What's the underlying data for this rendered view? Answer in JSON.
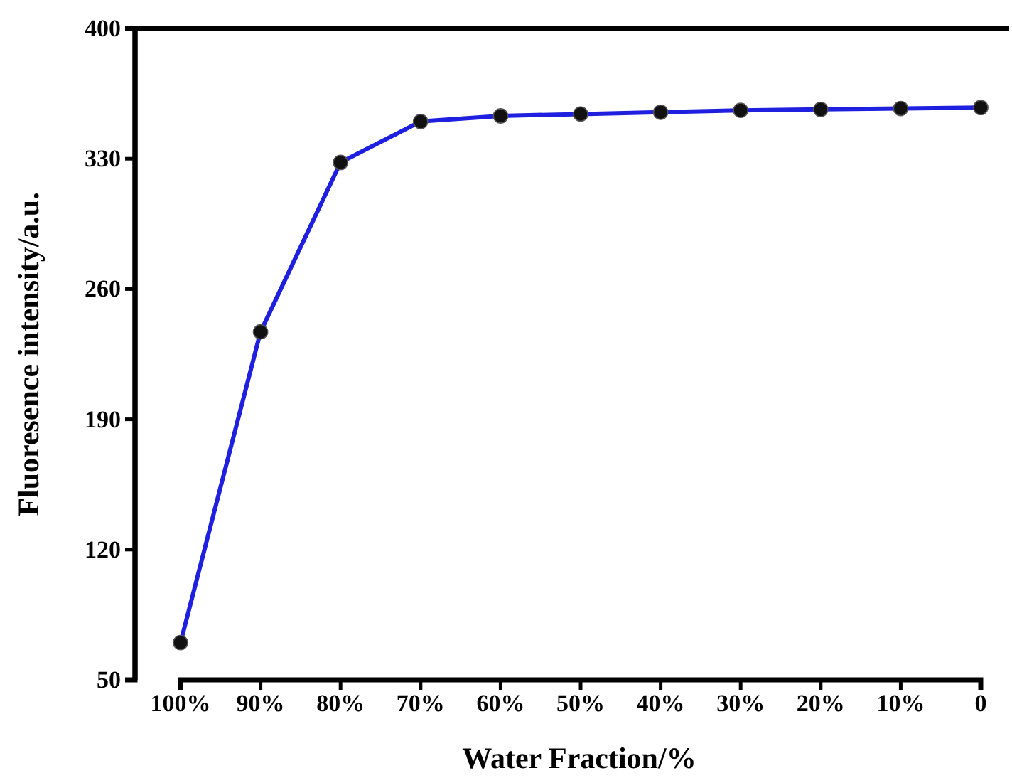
{
  "chart_data": {
    "type": "line",
    "xlabel": "Water Fraction/%",
    "ylabel": "Fluoresence intensity/a.u.",
    "categories": [
      "100%",
      "90%",
      "80%",
      "70%",
      "60%",
      "50%",
      "40%",
      "30%",
      "20%",
      "10%",
      "0"
    ],
    "series": [
      {
        "color": "#1f1fe0",
        "values": [
          70,
          237,
          328,
          350,
          353,
          354,
          355,
          356,
          356.5,
          357,
          357.5
        ]
      }
    ],
    "ylim": [
      50,
      400
    ],
    "yticks": [
      50,
      120,
      190,
      260,
      330,
      400
    ],
    "marker": "circle",
    "line_style": "solid"
  }
}
